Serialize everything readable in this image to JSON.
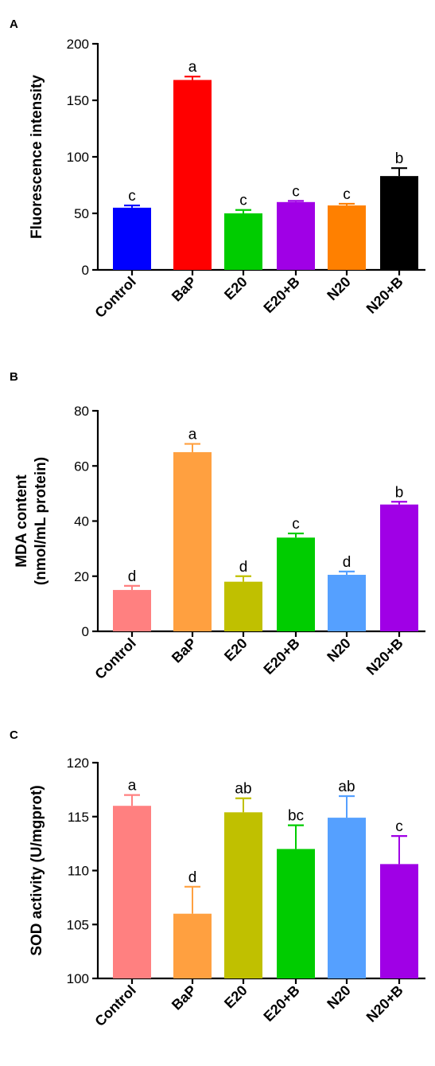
{
  "chart_data": [
    {
      "panel": "A",
      "type": "bar",
      "ylabel": "Fluorescence intensity",
      "ylabel_lines": [
        "Fluorescence intensity"
      ],
      "ylim": [
        0,
        200
      ],
      "yticks": [
        0,
        50,
        100,
        150,
        200
      ],
      "categories": [
        "Control",
        "BaP",
        "E20",
        "E20+B",
        "N20",
        "N20+B"
      ],
      "values": [
        55,
        168,
        50,
        60,
        57,
        83
      ],
      "errors": [
        2,
        3,
        3,
        1,
        1.5,
        7
      ],
      "letters": [
        "c",
        "a",
        "c",
        "c",
        "c",
        "b"
      ],
      "colors": [
        "#0000FF",
        "#FF0000",
        "#00CC00",
        "#A000E6",
        "#FF8000",
        "#000000"
      ]
    },
    {
      "panel": "B",
      "type": "bar",
      "ylabel": "MDA content (nmol/mL protein)",
      "ylabel_lines": [
        "MDA content",
        "(nmol/mL protein)"
      ],
      "ylim": [
        0,
        80
      ],
      "yticks": [
        0,
        20,
        40,
        60,
        80
      ],
      "categories": [
        "Control",
        "BaP",
        "E20",
        "E20+B",
        "N20",
        "N20+B"
      ],
      "values": [
        15,
        65,
        18,
        34,
        20.5,
        46
      ],
      "errors": [
        1.5,
        3,
        2,
        1.5,
        1.2,
        1
      ],
      "letters": [
        "d",
        "a",
        "d",
        "c",
        "d",
        "b"
      ],
      "colors": [
        "#FF8080",
        "#FFA040",
        "#C0C000",
        "#00CC00",
        "#55A0FF",
        "#A000E6"
      ]
    },
    {
      "panel": "C",
      "type": "bar",
      "ylabel": "SOD activity (U/mgprot)",
      "ylabel_lines": [
        "SOD activity (U/mgprot)"
      ],
      "ylim": [
        100,
        120
      ],
      "yticks": [
        100,
        105,
        110,
        115,
        120
      ],
      "categories": [
        "Control",
        "BaP",
        "E20",
        "E20+B",
        "N20",
        "N20+B"
      ],
      "values": [
        116,
        106,
        115.4,
        112,
        114.9,
        110.6
      ],
      "errors": [
        1,
        2.5,
        1.3,
        2.2,
        2,
        2.6
      ],
      "letters": [
        "a",
        "d",
        "ab",
        "bc",
        "ab",
        "c"
      ],
      "colors": [
        "#FF8080",
        "#FFA040",
        "#C0C000",
        "#00CC00",
        "#55A0FF",
        "#A000E6"
      ]
    }
  ]
}
